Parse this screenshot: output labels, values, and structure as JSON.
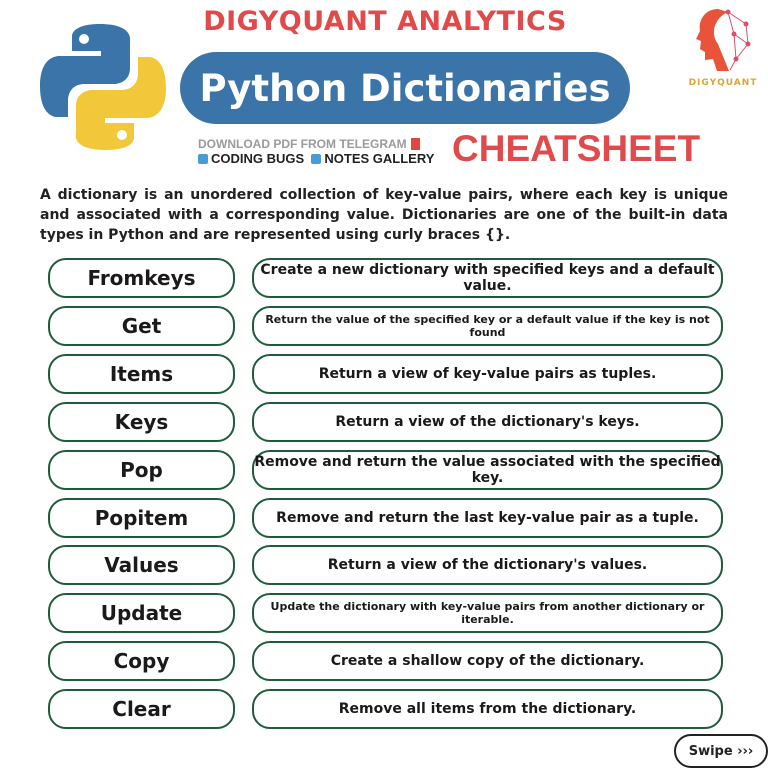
{
  "header": {
    "brand": "DIGYQUANT ANALYTICS",
    "title": "Python Dictionaries",
    "download": "DOWNLOAD PDF FROM TELEGRAM",
    "links": [
      "CODING BUGS",
      "NOTES GALLERY"
    ],
    "subtitle": "CHEATSHEET",
    "logo_text": "DIGYQUANT"
  },
  "intro": "A dictionary is an unordered collection of key-value pairs, where each key is unique and associated with a corresponding value. Dictionaries are one of the built-in data types in Python and are represented using curly braces {}.",
  "methods": [
    {
      "name": "Fromkeys",
      "desc": "Create a new dictionary with specified keys and a default value."
    },
    {
      "name": "Get",
      "desc": "Return the value of the specified key or a default value if the key is not found"
    },
    {
      "name": "Items",
      "desc": "Return a view of key-value pairs as tuples."
    },
    {
      "name": "Keys",
      "desc": "Return a view of the dictionary's keys."
    },
    {
      "name": "Pop",
      "desc": "Remove and return the value associated with the specified key."
    },
    {
      "name": "Popitem",
      "desc": "Remove and return the last key-value pair as a tuple."
    },
    {
      "name": "Values",
      "desc": "Return a view of the dictionary's values."
    },
    {
      "name": "Update",
      "desc": "Update the dictionary with key-value pairs from another dictionary or iterable."
    },
    {
      "name": "Copy",
      "desc": "Create a shallow copy of the dictionary."
    },
    {
      "name": "Clear",
      "desc": "Remove all items from the dictionary."
    }
  ],
  "swipe": {
    "label": "Swipe",
    "icon": "triple-chevron-right"
  },
  "colors": {
    "accent_red": "#e04a4a",
    "title_blue": "#3a74a8",
    "border_green": "#1f5c3c"
  }
}
